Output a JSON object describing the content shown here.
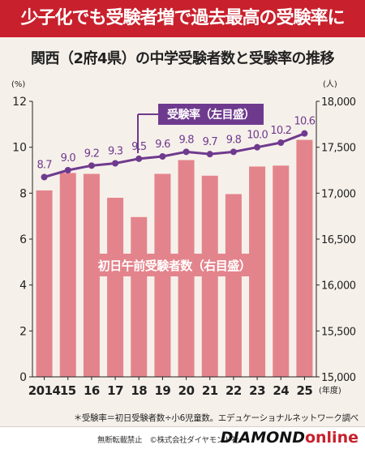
{
  "header": {
    "banner": "少子化でも受験者増で過去最高の受験率に",
    "subtitle": "関西（2府4県）の中学受験者数と受験率の推移"
  },
  "chart_data": {
    "type": "bar+line",
    "categories": [
      "2014",
      "15",
      "16",
      "17",
      "18",
      "19",
      "20",
      "21",
      "22",
      "23",
      "24",
      "25"
    ],
    "xunit": "(年度)",
    "series": [
      {
        "name": "初日午前受験者数（右目盛）",
        "type": "bar",
        "axis": "right",
        "color": "#e3848c",
        "values": [
          17030,
          17220,
          17210,
          16950,
          16740,
          17210,
          17360,
          17190,
          16990,
          17290,
          17300,
          17580
        ]
      },
      {
        "name": "受験率（左目盛）",
        "type": "line",
        "axis": "left",
        "color": "#6e3a8e",
        "values": [
          8.7,
          9.0,
          9.2,
          9.3,
          9.5,
          9.6,
          9.8,
          9.7,
          9.8,
          10.0,
          10.2,
          10.6
        ]
      }
    ],
    "left_axis": {
      "unit": "(%)",
      "ylim": [
        0,
        12
      ],
      "ticks": [
        "0",
        "2",
        "4",
        "6",
        "8",
        "10",
        "12"
      ]
    },
    "right_axis": {
      "unit": "(人)",
      "ylim": [
        15000,
        18000
      ],
      "ticks": [
        "15,000",
        "15,500",
        "16,000",
        "16,500",
        "17,000",
        "17,500",
        "18,000"
      ]
    },
    "grid": false,
    "line_labels": [
      "8.7",
      "9.0",
      "9.2",
      "9.3",
      "9.5",
      "9.6",
      "9.8",
      "9.7",
      "9.8",
      "10.0",
      "10.2",
      "10.6"
    ]
  },
  "footer": {
    "note": "＊受験率＝初日受験者数÷小6児童数。エデュケーショナルネットワーク調べ",
    "copyright": "無断転載禁止　©株式会社ダイヤモンド社",
    "brand_main": "DIAMOND",
    "brand_sub": "online"
  },
  "colors": {
    "banner": "#c8202c",
    "bar": "#e3848c",
    "line": "#6e3a8e",
    "background": "#f6f0ea"
  }
}
